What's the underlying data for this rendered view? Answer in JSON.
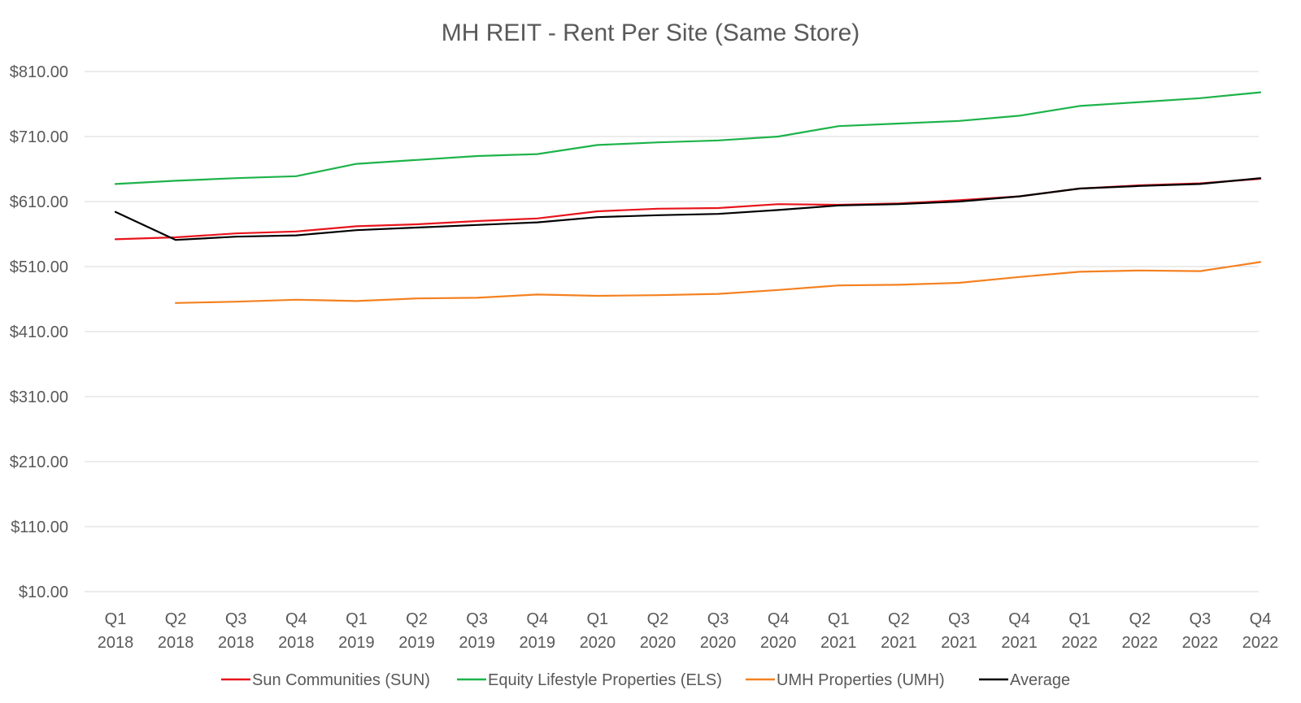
{
  "chart_data": {
    "type": "line",
    "title": "MH REIT - Rent Per Site (Same Store)",
    "xlabel": "",
    "ylabel": "",
    "ylim": [
      10,
      810
    ],
    "y_ticks": [
      "$10.00",
      "$110.00",
      "$210.00",
      "$310.00",
      "$410.00",
      "$510.00",
      "$610.00",
      "$710.00",
      "$810.00"
    ],
    "y_tick_values": [
      10,
      110,
      210,
      310,
      410,
      510,
      610,
      710,
      810
    ],
    "grid": true,
    "legend_position": "bottom",
    "categories": [
      [
        "Q1",
        "2018"
      ],
      [
        "Q2",
        "2018"
      ],
      [
        "Q3",
        "2018"
      ],
      [
        "Q4",
        "2018"
      ],
      [
        "Q1",
        "2019"
      ],
      [
        "Q2",
        "2019"
      ],
      [
        "Q3",
        "2019"
      ],
      [
        "Q4",
        "2019"
      ],
      [
        "Q1",
        "2020"
      ],
      [
        "Q2",
        "2020"
      ],
      [
        "Q3",
        "2020"
      ],
      [
        "Q4",
        "2020"
      ],
      [
        "Q1",
        "2021"
      ],
      [
        "Q2",
        "2021"
      ],
      [
        "Q3",
        "2021"
      ],
      [
        "Q4",
        "2021"
      ],
      [
        "Q1",
        "2022"
      ],
      [
        "Q2",
        "2022"
      ],
      [
        "Q3",
        "2022"
      ],
      [
        "Q4",
        "2022"
      ]
    ],
    "series": [
      {
        "name": "Sun Communities (SUN)",
        "color": "#e8141c",
        "values": [
          552,
          555,
          561,
          564,
          572,
          575,
          580,
          584,
          595,
          599,
          600,
          606,
          605,
          607,
          612,
          618,
          630,
          635,
          638,
          645
        ]
      },
      {
        "name": "Equity Lifestyle Properties (ELS)",
        "color": "#1db34a",
        "values": [
          637,
          642,
          646,
          649,
          668,
          674,
          680,
          683,
          697,
          701,
          704,
          710,
          726,
          730,
          734,
          742,
          757,
          763,
          769,
          778
        ]
      },
      {
        "name": "UMH Properties (UMH)",
        "color": "#f48120",
        "values": [
          null,
          454,
          456,
          459,
          457,
          461,
          462,
          467,
          465,
          466,
          468,
          474,
          481,
          482,
          485,
          494,
          502,
          504,
          503,
          517
        ]
      },
      {
        "name": "Average",
        "color": "#000000",
        "values": [
          594,
          551,
          556,
          558,
          566,
          570,
          574,
          578,
          586,
          589,
          591,
          597,
          604,
          606,
          610,
          618,
          630,
          634,
          637,
          646
        ]
      }
    ]
  }
}
